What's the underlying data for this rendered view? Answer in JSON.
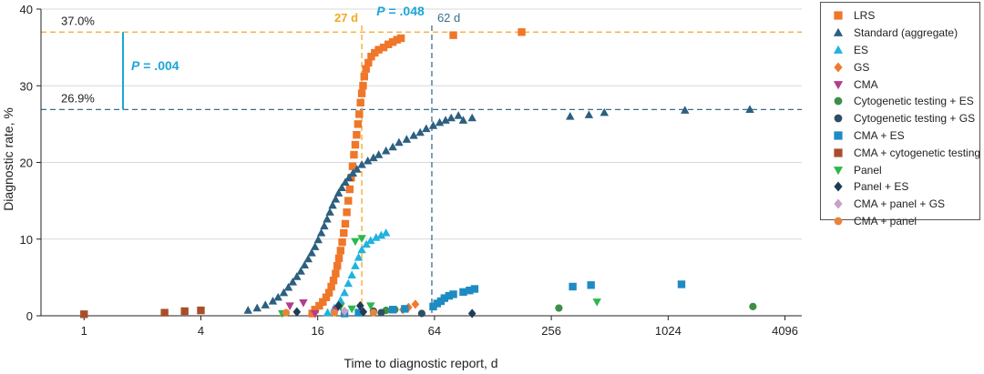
{
  "chart_data": {
    "type": "scatter",
    "title": "",
    "xlabel": "Time to diagnostic report, d",
    "ylabel": "Diagnostic rate, %",
    "x_scale": "log2",
    "xlim": [
      0.6,
      5000
    ],
    "ylim": [
      0,
      40
    ],
    "x_ticks": [
      1,
      4,
      16,
      64,
      256,
      1024,
      4096
    ],
    "x_tick_labels": [
      "1",
      "4",
      "16",
      "64",
      "256",
      "1024",
      "4096"
    ],
    "y_ticks": [
      0,
      10,
      20,
      30,
      40
    ],
    "y_tick_labels": [
      "0",
      "10",
      "20",
      "30",
      "40"
    ],
    "grid": "horizontal",
    "legend_position": "right",
    "reference_lines": [
      {
        "axis": "y",
        "value": 37.0,
        "label": "37.0%",
        "color": "#F5A623"
      },
      {
        "axis": "y",
        "value": 26.9,
        "label": "26.9%",
        "color": "#3C6E8C"
      },
      {
        "axis": "x",
        "value": 27,
        "label": "27 d",
        "color": "#F5A623"
      },
      {
        "axis": "x",
        "value": 62,
        "label": "62 d",
        "color": "#3C6E8C"
      }
    ],
    "annotations": [
      {
        "id": "p_rate",
        "italic": "P",
        "text": " = .004",
        "color": "#1BA6D8"
      },
      {
        "id": "p_time",
        "italic": "P",
        "text": " = .048",
        "color": "#1BA6D8"
      }
    ],
    "series": [
      {
        "name": "LRS",
        "color": "#F0762A",
        "marker": "square",
        "points": [
          [
            15,
            0.3
          ],
          [
            15.5,
            0.8
          ],
          [
            16.3,
            1.3
          ],
          [
            17,
            1.8
          ],
          [
            17.7,
            2.4
          ],
          [
            18.3,
            3
          ],
          [
            18.8,
            3.8
          ],
          [
            19.3,
            4.6
          ],
          [
            19.8,
            5.5
          ],
          [
            20.2,
            6.5
          ],
          [
            20.6,
            7.5
          ],
          [
            21,
            8.5
          ],
          [
            21.4,
            9.6
          ],
          [
            21.8,
            10.8
          ],
          [
            22.2,
            12
          ],
          [
            22.6,
            13.5
          ],
          [
            23,
            15
          ],
          [
            23.4,
            16.5
          ],
          [
            23.8,
            18
          ],
          [
            24.2,
            19.5
          ],
          [
            24.6,
            21
          ],
          [
            25,
            22.3
          ],
          [
            25.4,
            23.6
          ],
          [
            25.8,
            25
          ],
          [
            26.2,
            26.3
          ],
          [
            26.6,
            27.8
          ],
          [
            27,
            29
          ],
          [
            27.4,
            30
          ],
          [
            27.8,
            31.2
          ],
          [
            28.4,
            32.2
          ],
          [
            29.2,
            33
          ],
          [
            30.2,
            33.8
          ],
          [
            31.5,
            34.3
          ],
          [
            33,
            34.7
          ],
          [
            35,
            35
          ],
          [
            37,
            35.4
          ],
          [
            39,
            35.7
          ],
          [
            41,
            36
          ],
          [
            43,
            36.2
          ],
          [
            80,
            36.6
          ],
          [
            180,
            37
          ]
        ]
      },
      {
        "name": "Standard (aggregate)",
        "color": "#2D5F80",
        "marker": "triangle-up",
        "points": [
          [
            7,
            0.7
          ],
          [
            7.8,
            1
          ],
          [
            8.6,
            1.4
          ],
          [
            9.4,
            1.9
          ],
          [
            10,
            2.4
          ],
          [
            10.7,
            3
          ],
          [
            11.3,
            3.7
          ],
          [
            11.9,
            4.4
          ],
          [
            12.5,
            5.1
          ],
          [
            13.1,
            5.8
          ],
          [
            13.7,
            6.6
          ],
          [
            14.3,
            7.4
          ],
          [
            14.9,
            8.2
          ],
          [
            15.5,
            9
          ],
          [
            16.1,
            9.9
          ],
          [
            16.7,
            10.8
          ],
          [
            17.3,
            11.7
          ],
          [
            17.9,
            12.6
          ],
          [
            18.5,
            13.5
          ],
          [
            19.1,
            14.4
          ],
          [
            19.8,
            15.2
          ],
          [
            20.5,
            16
          ],
          [
            21.3,
            16.7
          ],
          [
            22.2,
            17.4
          ],
          [
            23.2,
            18
          ],
          [
            24.3,
            18.6
          ],
          [
            25.5,
            19.1
          ],
          [
            27,
            19.7
          ],
          [
            29,
            20.2
          ],
          [
            31,
            20.6
          ],
          [
            33,
            21
          ],
          [
            36,
            21.5
          ],
          [
            39,
            22
          ],
          [
            42,
            22.6
          ],
          [
            46,
            23
          ],
          [
            50,
            23.5
          ],
          [
            54,
            23.9
          ],
          [
            58,
            24.4
          ],
          [
            63,
            24.8
          ],
          [
            68,
            25.2
          ],
          [
            73,
            25.5
          ],
          [
            78,
            25.8
          ],
          [
            85,
            26.1
          ],
          [
            90,
            25.5
          ],
          [
            100,
            25.8
          ],
          [
            320,
            26
          ],
          [
            400,
            26.2
          ],
          [
            480,
            26.5
          ],
          [
            1250,
            26.8
          ],
          [
            2700,
            26.9
          ]
        ]
      },
      {
        "name": "ES",
        "color": "#20B2E0",
        "marker": "triangle-up",
        "points": [
          [
            18,
            0.4
          ],
          [
            19.5,
            1
          ],
          [
            21,
            2
          ],
          [
            22,
            3
          ],
          [
            23,
            4.2
          ],
          [
            24,
            5.3
          ],
          [
            25,
            6.5
          ],
          [
            26,
            7.6
          ],
          [
            27,
            8.6
          ],
          [
            28.5,
            9.3
          ],
          [
            30,
            9.8
          ],
          [
            32,
            10.2
          ],
          [
            34,
            10.5
          ],
          [
            36,
            10.8
          ]
        ]
      },
      {
        "name": "GS",
        "color": "#EF7A2E",
        "marker": "diamond",
        "points": [
          [
            44,
            0.8
          ],
          [
            47,
            1.1
          ],
          [
            51,
            1.5
          ]
        ]
      },
      {
        "name": "CMA",
        "color": "#B43C8C",
        "marker": "triangle-down",
        "points": [
          [
            11.5,
            1.3
          ],
          [
            13.5,
            1.7
          ],
          [
            15.5,
            0.3
          ],
          [
            20,
            0.8
          ]
        ]
      },
      {
        "name": "Cytogenetic testing + ES",
        "color": "#3E8E45",
        "marker": "circle",
        "points": [
          [
            36,
            0.7
          ],
          [
            40,
            0.8
          ],
          [
            280,
            1
          ],
          [
            2800,
            1.2
          ]
        ]
      },
      {
        "name": "Cytogenetic testing + GS",
        "color": "#2E4F63",
        "marker": "circle",
        "points": [
          [
            31,
            0.6
          ],
          [
            55,
            0.3
          ],
          [
            34,
            0.4
          ]
        ]
      },
      {
        "name": "CMA + ES",
        "color": "#1E8BC3",
        "marker": "square",
        "points": [
          [
            22,
            0.3
          ],
          [
            26,
            0.4
          ],
          [
            39,
            0.8
          ],
          [
            45,
            0.9
          ],
          [
            63,
            1.2
          ],
          [
            66,
            1.6
          ],
          [
            69,
            1.9
          ],
          [
            72,
            2.3
          ],
          [
            76,
            2.6
          ],
          [
            80,
            2.8
          ],
          [
            90,
            3.1
          ],
          [
            97,
            3.3
          ],
          [
            103,
            3.5
          ],
          [
            330,
            3.8
          ],
          [
            410,
            4
          ],
          [
            1200,
            4.1
          ]
        ]
      },
      {
        "name": "CMA + cytogenetic testing",
        "color": "#A94E2A",
        "marker": "square",
        "points": [
          [
            1,
            0.2
          ],
          [
            2.6,
            0.4
          ],
          [
            3.3,
            0.6
          ],
          [
            4,
            0.7
          ]
        ]
      },
      {
        "name": "Panel",
        "color": "#2DB84B",
        "marker": "triangle-down",
        "points": [
          [
            10.5,
            0.3
          ],
          [
            21,
            1.2
          ],
          [
            24,
            0.9
          ],
          [
            30,
            1.3
          ],
          [
            440,
            1.8
          ],
          [
            25,
            9.7
          ],
          [
            27,
            10.1
          ]
        ]
      },
      {
        "name": "Panel + ES",
        "color": "#1F3C57",
        "marker": "diamond",
        "points": [
          [
            12.5,
            0.5
          ],
          [
            20.5,
            1.3
          ],
          [
            26.5,
            1.3
          ],
          [
            27.5,
            0.5
          ],
          [
            100,
            0.3
          ]
        ]
      },
      {
        "name": "CMA + panel + GS",
        "color": "#C9A0C8",
        "marker": "diamond",
        "points": [
          [
            22,
            0.6
          ]
        ]
      },
      {
        "name": "CMA + panel",
        "color": "#E8833A",
        "marker": "circle",
        "points": [
          [
            11,
            0.4
          ],
          [
            19.5,
            0.4
          ],
          [
            31,
            0.4
          ]
        ]
      }
    ]
  }
}
